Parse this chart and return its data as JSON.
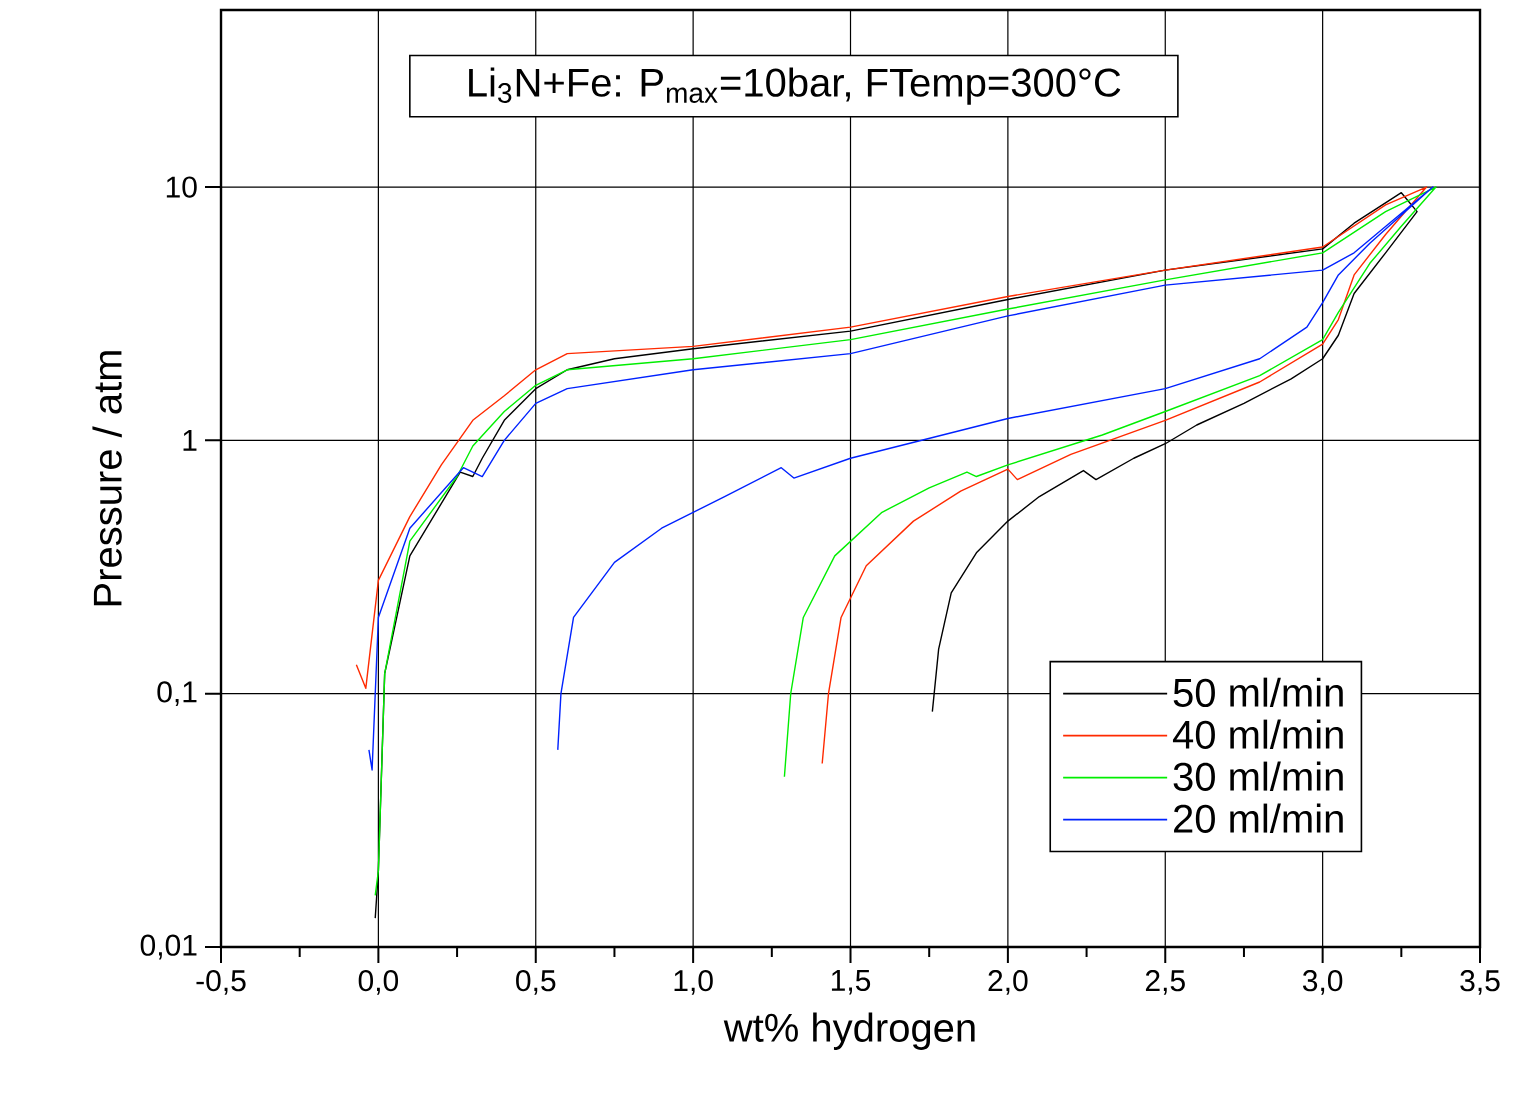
{
  "chart_data": {
    "type": "line",
    "title": "Li$_{3}$N+Fe: P$_{max}$=10bar, FTemp=300°C",
    "xlabel": "wt% hydrogen",
    "ylabel": "Pressure / atm",
    "xlim": [
      -0.5,
      3.5
    ],
    "ylim": [
      0.01,
      50
    ],
    "log": "y",
    "grid": true,
    "legend": "bottom right",
    "marker": "none",
    "line_style": "solid",
    "xticks": [
      {
        "value": -0.5,
        "label": "-0,5"
      },
      {
        "value": 0.0,
        "label": "0,0"
      },
      {
        "value": 0.5,
        "label": "0,5"
      },
      {
        "value": 1.0,
        "label": "1,0"
      },
      {
        "value": 1.5,
        "label": "1,5"
      },
      {
        "value": 2.0,
        "label": "2,0"
      },
      {
        "value": 2.5,
        "label": "2,5"
      },
      {
        "value": 3.0,
        "label": "3,0"
      },
      {
        "value": 3.5,
        "label": "3,5"
      }
    ],
    "yticks": [
      {
        "value": 0.01,
        "label": "0,01"
      },
      {
        "value": 0.1,
        "label": "0,1"
      },
      1,
      10
    ],
    "series": [
      {
        "name": "50 ml/min",
        "color": "#000000",
        "x": [
          1.76,
          1.78,
          1.82,
          1.9,
          2.0,
          2.1,
          2.24,
          2.28,
          2.4,
          2.5,
          2.6,
          2.75,
          2.9,
          3.0,
          3.05,
          3.1,
          3.2,
          3.3,
          3.25,
          3.1,
          3.0,
          2.5,
          2.0,
          1.5,
          1.0,
          0.75,
          0.6,
          0.5,
          0.4,
          0.33,
          0.3,
          0.26,
          0.1,
          0.02,
          0.0,
          -0.01
        ],
        "values": [
          0.085,
          0.15,
          0.25,
          0.36,
          0.48,
          0.6,
          0.76,
          0.7,
          0.85,
          0.97,
          1.15,
          1.4,
          1.75,
          2.1,
          2.6,
          3.8,
          5.5,
          8,
          9.5,
          7.2,
          5.7,
          4.7,
          3.6,
          2.7,
          2.3,
          2.1,
          1.9,
          1.6,
          1.2,
          0.85,
          0.72,
          0.75,
          0.35,
          0.12,
          0.02,
          0.013
        ]
      },
      {
        "name": "40 ml/min",
        "color": "#ff2a00",
        "x": [
          1.41,
          1.43,
          1.47,
          1.55,
          1.7,
          1.85,
          2.0,
          2.03,
          2.2,
          2.5,
          2.8,
          3.0,
          3.05,
          3.1,
          3.2,
          3.33,
          3.2,
          3.0,
          2.5,
          2.0,
          1.5,
          1.0,
          0.6,
          0.5,
          0.4,
          0.3,
          0.2,
          0.1,
          0.0,
          -0.04,
          -0.07
        ],
        "values": [
          0.053,
          0.1,
          0.2,
          0.32,
          0.48,
          0.63,
          0.77,
          0.7,
          0.88,
          1.2,
          1.7,
          2.4,
          3.0,
          4.5,
          6.5,
          10,
          8.5,
          5.8,
          4.7,
          3.7,
          2.8,
          2.35,
          2.2,
          1.9,
          1.5,
          1.2,
          0.8,
          0.5,
          0.28,
          0.105,
          0.13
        ]
      },
      {
        "name": "30 ml/min",
        "color": "#00ee00",
        "x": [
          1.29,
          1.31,
          1.35,
          1.45,
          1.6,
          1.75,
          1.87,
          1.9,
          2.0,
          2.3,
          2.5,
          2.8,
          3.0,
          3.05,
          3.15,
          3.25,
          3.36,
          3.2,
          3.0,
          2.5,
          2.0,
          1.5,
          1.0,
          0.6,
          0.5,
          0.4,
          0.3,
          0.25,
          0.1,
          0.02,
          0.0,
          -0.01
        ],
        "values": [
          0.047,
          0.1,
          0.2,
          0.35,
          0.52,
          0.65,
          0.75,
          0.72,
          0.8,
          1.05,
          1.3,
          1.8,
          2.5,
          3.2,
          5,
          7,
          10,
          8,
          5.5,
          4.3,
          3.3,
          2.5,
          2.1,
          1.9,
          1.65,
          1.3,
          0.95,
          0.72,
          0.4,
          0.12,
          0.02,
          0.016
        ]
      },
      {
        "name": "20 ml/min",
        "color": "#0022ff",
        "x": [
          0.57,
          0.58,
          0.62,
          0.75,
          0.9,
          1.1,
          1.28,
          1.32,
          1.5,
          2.0,
          2.5,
          2.8,
          2.95,
          3.0,
          3.05,
          3.15,
          3.35,
          3.1,
          3.0,
          2.5,
          2.0,
          1.5,
          1.0,
          0.6,
          0.5,
          0.4,
          0.33,
          0.27,
          0.1,
          0.0,
          -0.02,
          -0.03
        ],
        "values": [
          0.06,
          0.1,
          0.2,
          0.33,
          0.45,
          0.6,
          0.78,
          0.71,
          0.85,
          1.22,
          1.6,
          2.1,
          2.8,
          3.5,
          4.5,
          6,
          10,
          5.5,
          4.7,
          4.1,
          3.1,
          2.2,
          1.9,
          1.6,
          1.4,
          1.0,
          0.72,
          0.78,
          0.45,
          0.2,
          0.05,
          0.06
        ]
      }
    ]
  }
}
